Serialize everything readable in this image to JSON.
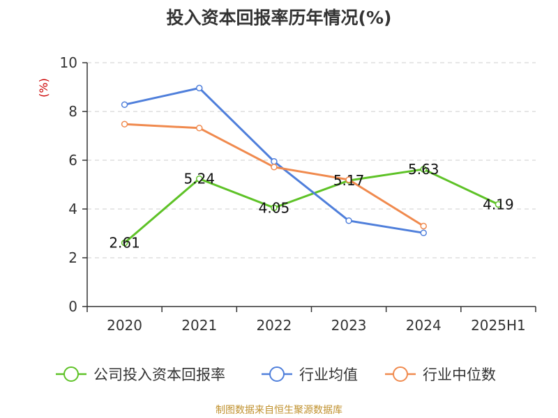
{
  "page_title": "投入资本回报率历年情况(%)",
  "source_note": "制图数据来自恒生聚源数据库",
  "colors": {
    "series_green": "#5ec227",
    "series_blue": "#4f7fdb",
    "series_orange": "#f08a4e",
    "unit": "#cc0000",
    "text": "#333333",
    "source": "#c0912e",
    "grid": "#cccccc"
  },
  "chart_data": {
    "type": "line",
    "title": "投入资本回报率历年情况(%)",
    "ylabel": "(%)",
    "categories": [
      "2020",
      "2021",
      "2022",
      "2023",
      "2024",
      "2025H1"
    ],
    "ylim": [
      0,
      10
    ],
    "yticks": [
      0,
      2,
      4,
      6,
      8,
      10
    ],
    "grid": "horizontal dashed",
    "legend_position": "bottom",
    "series": [
      {
        "name": "公司投入资本回报率",
        "color": "#5ec227",
        "values": [
          2.61,
          5.24,
          4.05,
          5.17,
          5.63,
          4.19
        ],
        "labels": [
          "2.61",
          "5.24",
          "4.05",
          "5.17",
          "5.63",
          "4.19"
        ]
      },
      {
        "name": "行业均值",
        "color": "#4f7fdb",
        "values": [
          8.28,
          8.96,
          5.95,
          3.52,
          3.02,
          null
        ]
      },
      {
        "name": "行业中位数",
        "color": "#f08a4e",
        "values": [
          7.48,
          7.32,
          5.72,
          5.2,
          3.3,
          null
        ]
      }
    ]
  }
}
